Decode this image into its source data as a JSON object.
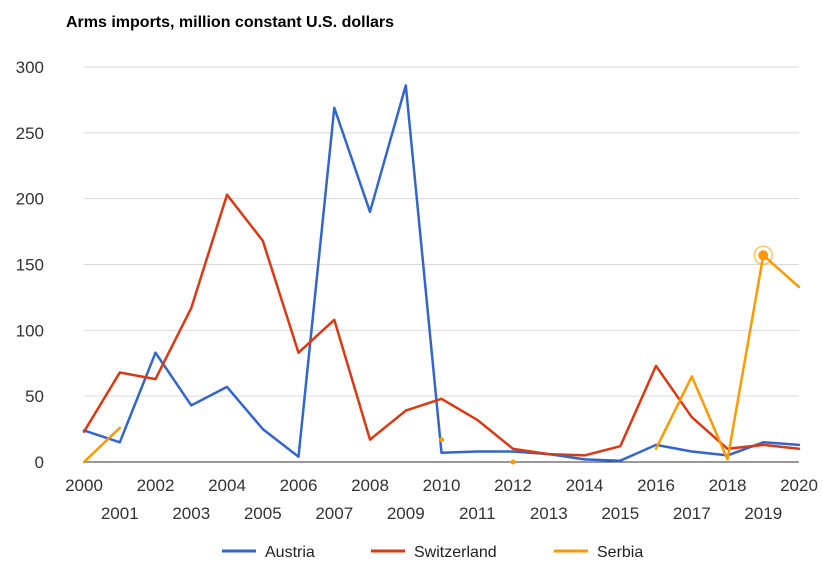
{
  "chart_data": {
    "type": "line",
    "title": "Arms imports, million constant U.S. dollars",
    "xlabel": "",
    "ylabel": "",
    "x": [
      2000,
      2001,
      2002,
      2003,
      2004,
      2005,
      2006,
      2007,
      2008,
      2009,
      2010,
      2011,
      2012,
      2013,
      2014,
      2015,
      2016,
      2017,
      2018,
      2019,
      2020
    ],
    "x_tick_labels": [
      "2000",
      "2001",
      "2002",
      "2003",
      "2004",
      "2005",
      "2006",
      "2007",
      "2008",
      "2009",
      "2010",
      "2011",
      "2012",
      "2013",
      "2014",
      "2015",
      "2016",
      "2017",
      "2018",
      "2019",
      "2020"
    ],
    "ylim": [
      0,
      300
    ],
    "y_ticks": [
      0,
      50,
      100,
      150,
      200,
      250,
      300
    ],
    "grid": true,
    "legend_position": "bottom",
    "series": [
      {
        "name": "Austria",
        "color": "#3366cc",
        "values": [
          24,
          15,
          83,
          43,
          57,
          25,
          4,
          269,
          190,
          286,
          7,
          8,
          8,
          6,
          2,
          1,
          13,
          8,
          5,
          15,
          13
        ]
      },
      {
        "name": "Switzerland",
        "color": "#dc3912",
        "values": [
          23,
          68,
          63,
          117,
          203,
          168,
          83,
          108,
          17,
          39,
          48,
          32,
          10,
          6,
          5,
          12,
          73,
          34,
          10,
          13,
          10
        ]
      },
      {
        "name": "Serbia",
        "color": "#ff9900",
        "values": [
          0,
          26,
          null,
          null,
          null,
          null,
          null,
          null,
          null,
          null,
          17,
          null,
          0,
          null,
          null,
          null,
          10,
          65,
          2,
          157,
          133
        ]
      }
    ],
    "highlight": {
      "series": "Serbia",
      "x": 2019,
      "value": 157
    }
  }
}
